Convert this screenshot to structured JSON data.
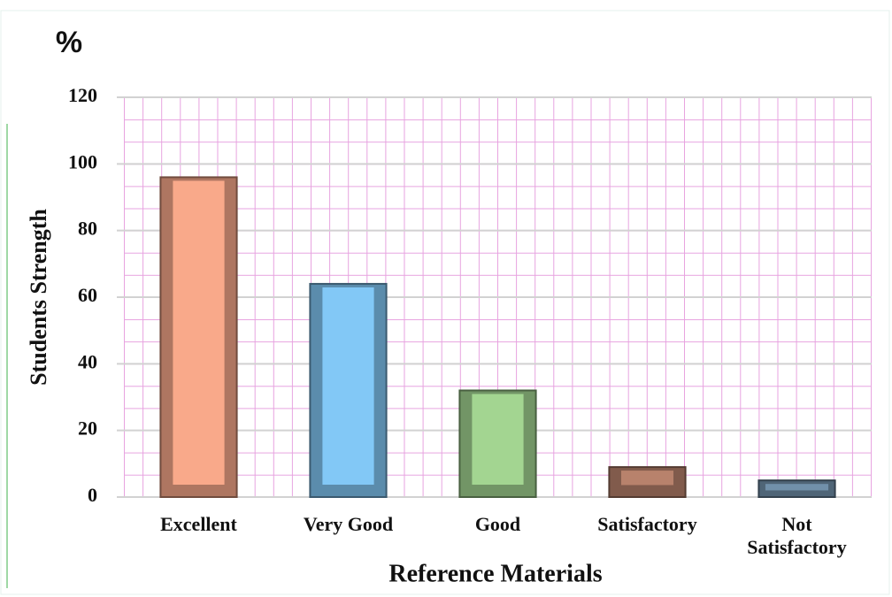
{
  "chart_data": {
    "type": "bar",
    "title": "%",
    "categories": [
      "Excellent",
      "Very Good",
      "Good",
      "Satisfactory",
      "Not Satisfactory"
    ],
    "values": [
      96,
      64,
      32,
      9,
      5
    ],
    "colors": [
      "#f9a98a",
      "#82c8f6",
      "#a3d591",
      "#b8826c",
      "#7190aa"
    ],
    "xlabel": "Reference Materials",
    "ylabel": "Students Strength",
    "ylim": [
      0,
      120
    ],
    "yticks": [
      0,
      20,
      40,
      60,
      80,
      100,
      120
    ],
    "grid": true
  }
}
